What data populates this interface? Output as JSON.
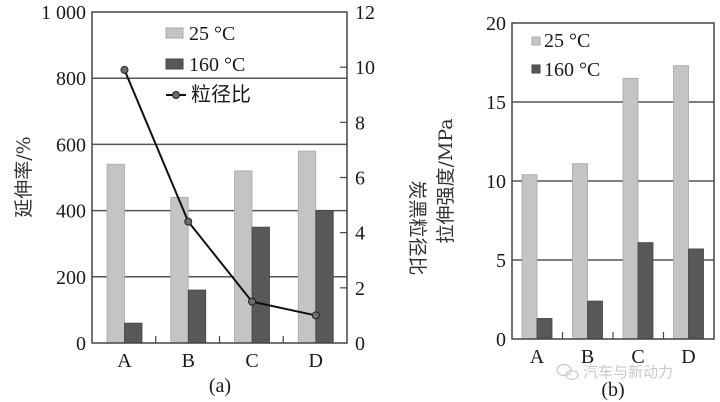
{
  "colors": {
    "light_bar": "#c4c4c4",
    "light_bar_edge": "#a8a8a8",
    "dark_bar": "#585858",
    "dark_bar_edge": "#454545",
    "grid": "#555555",
    "axis": "#444444",
    "line": "#111111",
    "marker": "#6e6e6e"
  },
  "chart_data": [
    {
      "panel_label": "(a)",
      "type": "bar",
      "categories": [
        "A",
        "B",
        "C",
        "D"
      ],
      "series": [
        {
          "name": "25 °C",
          "axis": "left",
          "values": [
            540,
            440,
            520,
            580
          ]
        },
        {
          "name": "160 °C",
          "axis": "left",
          "values": [
            60,
            160,
            350,
            400
          ]
        }
      ],
      "line_series": {
        "name": "粒径比",
        "axis": "right",
        "type": "line",
        "values": [
          9.9,
          4.4,
          1.5,
          1.0
        ]
      },
      "ylabel": "延伸率/%",
      "ylim": [
        0,
        1000
      ],
      "yticks": [
        "0",
        "200",
        "400",
        "600",
        "800",
        "1 000"
      ],
      "ytick_values": [
        0,
        200,
        400,
        600,
        800,
        1000
      ],
      "y2label": "炭黑粒径比",
      "y2lim": [
        0,
        12
      ],
      "y2ticks": [
        "0",
        "2",
        "4",
        "6",
        "8",
        "10",
        "12"
      ],
      "y2tick_values": [
        0,
        2,
        4,
        6,
        8,
        10,
        12
      ],
      "grid": true,
      "legend": "top-center"
    },
    {
      "panel_label": "(b)",
      "type": "bar",
      "categories": [
        "A",
        "B",
        "C",
        "D"
      ],
      "series": [
        {
          "name": "25 °C",
          "values": [
            10.4,
            11.1,
            16.5,
            17.3
          ]
        },
        {
          "name": "160 °C",
          "values": [
            1.3,
            2.4,
            6.1,
            5.7
          ]
        }
      ],
      "ylabel": "拉伸强度/MPa",
      "ylim": [
        0,
        20
      ],
      "yticks": [
        "0",
        "5",
        "10",
        "15",
        "20"
      ],
      "ytick_values": [
        0,
        5,
        10,
        15,
        20
      ],
      "grid": true,
      "legend": "top-left"
    }
  ],
  "watermark": "汽车与新动力"
}
